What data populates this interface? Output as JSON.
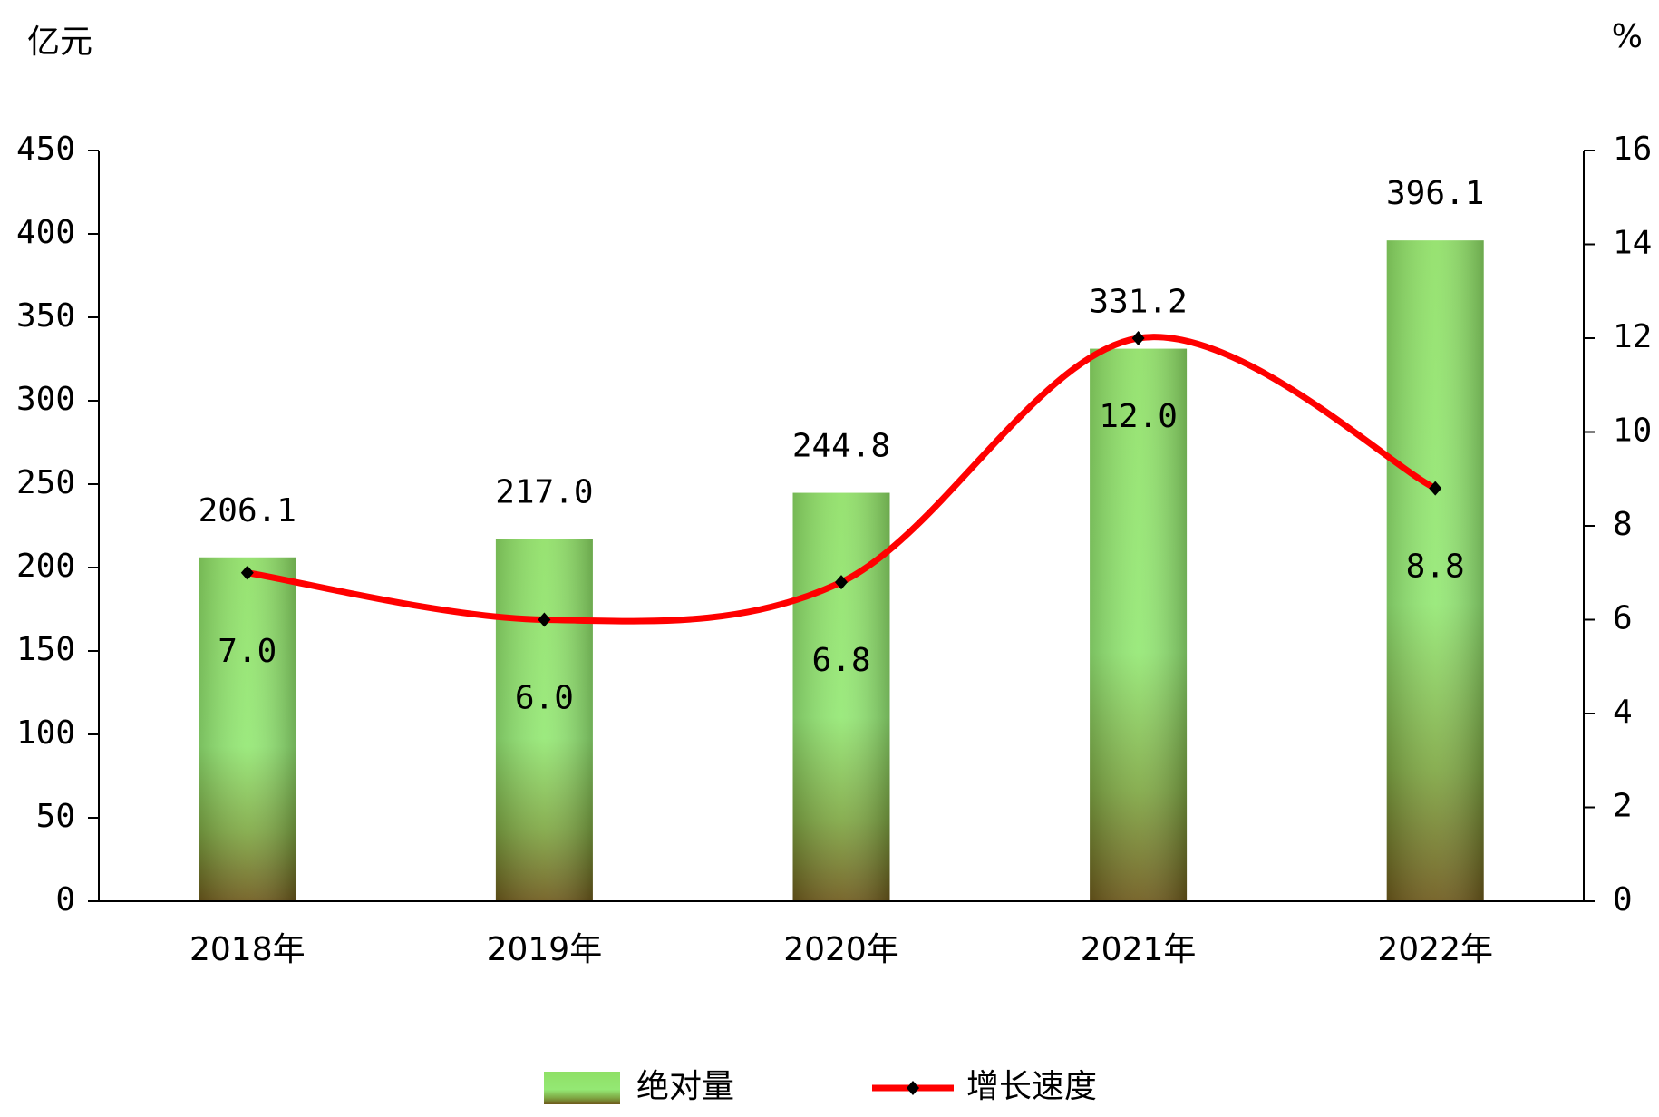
{
  "chart_data": {
    "type": "bar_line",
    "y_axis_label": "亿元",
    "y2_axis_label": "%",
    "categories": [
      "2018年",
      "2019年",
      "2020年",
      "2021年",
      "2022年"
    ],
    "series": [
      {
        "name": "绝对量",
        "type": "bar",
        "color": "#7ed957",
        "values": [
          206.1,
          217.0,
          244.8,
          331.2,
          396.1
        ],
        "value_labels": [
          "206.1",
          "217.0",
          "244.8",
          "331.2",
          "396.1"
        ]
      },
      {
        "name": "增长速度",
        "type": "line",
        "axis": "y2",
        "color": "#ff0000",
        "values": [
          7.0,
          6.0,
          6.8,
          12.0,
          8.8
        ],
        "value_labels": [
          "7.0",
          "6.0",
          "6.8",
          "12.0",
          "8.8"
        ]
      }
    ],
    "ylim": [
      0,
      450
    ],
    "yticks": [
      0,
      50,
      100,
      150,
      200,
      250,
      300,
      350,
      400,
      450
    ],
    "y2lim": [
      0,
      16
    ],
    "y2ticks": [
      0,
      2,
      4,
      6,
      8,
      10,
      12,
      14,
      16
    ],
    "legend": "bottom"
  }
}
